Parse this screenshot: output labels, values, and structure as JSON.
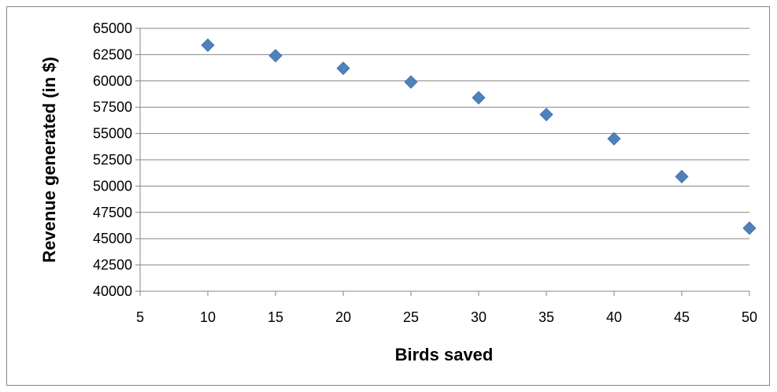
{
  "chart_data": {
    "type": "scatter",
    "title": "",
    "xlabel": "Birds saved",
    "ylabel": "Revenue generated (in $)",
    "xlim": [
      5,
      50
    ],
    "ylim": [
      40000,
      65000
    ],
    "x_ticks": [
      5,
      10,
      15,
      20,
      25,
      30,
      35,
      40,
      45,
      50
    ],
    "y_ticks": [
      40000,
      42500,
      45000,
      47500,
      50000,
      52500,
      55000,
      57500,
      60000,
      62500,
      65000
    ],
    "grid": "horizontal",
    "legend": "none",
    "marker": "diamond",
    "marker_color": "#4F81BD",
    "series": [
      {
        "points": [
          {
            "x": 10,
            "y": 63400
          },
          {
            "x": 15,
            "y": 62400
          },
          {
            "x": 20,
            "y": 61200
          },
          {
            "x": 25,
            "y": 59900
          },
          {
            "x": 30,
            "y": 58400
          },
          {
            "x": 35,
            "y": 56800
          },
          {
            "x": 40,
            "y": 54500
          },
          {
            "x": 45,
            "y": 50900
          },
          {
            "x": 50,
            "y": 46000
          }
        ]
      }
    ]
  }
}
